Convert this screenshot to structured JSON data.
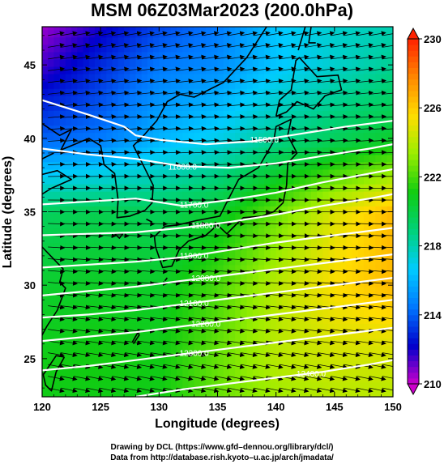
{
  "chart_data": {
    "type": "heatmap",
    "title": "MSM 06Z03Mar2023 (200.0hPa)",
    "xlabel": "Longitude (degrees)",
    "ylabel": "Latitude  (degrees)",
    "xlim": [
      120,
      150
    ],
    "ylim": [
      22.4,
      47.6
    ],
    "x_ticks": [
      120,
      125,
      130,
      135,
      140,
      145,
      150
    ],
    "y_ticks": [
      25,
      30,
      35,
      40,
      45
    ],
    "colorbar": {
      "min": 210,
      "max": 230,
      "ticks": [
        210,
        214,
        218,
        222,
        226,
        230
      ],
      "colors": [
        "#cc00cc",
        "#0000cc",
        "#0077ff",
        "#00ccff",
        "#00d27a",
        "#11cc11",
        "#99ee00",
        "#ffdd00",
        "#ff8800",
        "#ff2200"
      ]
    },
    "temperature_field": {
      "lon": [
        120,
        125,
        130,
        135,
        140,
        145,
        150
      ],
      "lat": [
        47.6,
        45,
        40,
        35,
        30,
        25,
        22.4
      ],
      "values": [
        [
          210.5,
          212.0,
          213.5,
          214.5,
          216.5,
          217.5,
          218.0
        ],
        [
          211.5,
          213.0,
          214.5,
          215.0,
          216.5,
          217.5,
          218.5
        ],
        [
          214.0,
          214.5,
          216.0,
          217.0,
          218.5,
          219.5,
          220.5
        ],
        [
          219.5,
          219.8,
          219.6,
          220.5,
          222.5,
          224.8,
          226.5
        ],
        [
          220.5,
          220.7,
          220.6,
          222.0,
          224.0,
          225.5,
          226.5
        ],
        [
          221.0,
          221.2,
          221.0,
          222.5,
          224.0,
          224.5,
          224.5
        ],
        [
          221.0,
          221.0,
          221.0,
          222.5,
          223.5,
          224.0,
          224.0
        ]
      ]
    },
    "geopotential_contours": [
      {
        "label": "11500.0",
        "label_lon": 139,
        "points": [
          [
            120,
            42.6
          ],
          [
            124,
            41.6
          ],
          [
            127,
            40.8
          ],
          [
            128,
            40.2
          ],
          [
            130,
            39.9
          ],
          [
            134,
            39.6
          ],
          [
            138,
            39.8
          ],
          [
            142,
            40.3
          ],
          [
            146,
            40.8
          ],
          [
            150,
            41.2
          ]
        ]
      },
      {
        "label": "11600.0",
        "label_lon": 132,
        "points": [
          [
            120,
            39.3
          ],
          [
            124,
            38.9
          ],
          [
            128,
            38.6
          ],
          [
            132,
            38.1
          ],
          [
            136,
            38.0
          ],
          [
            140,
            38.3
          ],
          [
            144,
            38.8
          ],
          [
            148,
            39.3
          ],
          [
            150,
            39.6
          ]
        ]
      },
      {
        "label": "11700.0",
        "label_lon": 133,
        "points": [
          [
            120,
            35.5
          ],
          [
            124,
            35.7
          ],
          [
            128,
            35.9
          ],
          [
            132,
            35.4
          ],
          [
            136,
            35.8
          ],
          [
            140,
            36.3
          ],
          [
            144,
            37.0
          ],
          [
            148,
            37.6
          ],
          [
            150,
            37.9
          ]
        ]
      },
      {
        "label": "11800.0",
        "label_lon": 134,
        "points": [
          [
            120,
            33.4
          ],
          [
            124,
            33.5
          ],
          [
            128,
            33.6
          ],
          [
            132,
            33.9
          ],
          [
            136,
            34.3
          ],
          [
            140,
            34.8
          ],
          [
            144,
            35.4
          ],
          [
            148,
            35.9
          ],
          [
            150,
            36.2
          ]
        ]
      },
      {
        "label": "11900.0",
        "label_lon": 133,
        "points": [
          [
            120,
            31.2
          ],
          [
            124,
            31.4
          ],
          [
            128,
            31.6
          ],
          [
            132,
            31.9
          ],
          [
            136,
            32.4
          ],
          [
            140,
            32.9
          ],
          [
            144,
            33.3
          ],
          [
            148,
            33.7
          ],
          [
            150,
            33.9
          ]
        ]
      },
      {
        "label": "12000.0",
        "label_lon": 134,
        "points": [
          [
            120,
            29.3
          ],
          [
            124,
            29.6
          ],
          [
            128,
            29.9
          ],
          [
            132,
            30.3
          ],
          [
            136,
            30.7
          ],
          [
            140,
            31.1
          ],
          [
            144,
            31.5
          ],
          [
            148,
            31.9
          ],
          [
            150,
            32.1
          ]
        ]
      },
      {
        "label": "12100.0",
        "label_lon": 133,
        "points": [
          [
            120,
            27.8
          ],
          [
            124,
            28.0
          ],
          [
            128,
            28.3
          ],
          [
            132,
            28.7
          ],
          [
            136,
            29.1
          ],
          [
            140,
            29.5
          ],
          [
            144,
            29.9
          ],
          [
            148,
            30.3
          ],
          [
            150,
            30.5
          ]
        ]
      },
      {
        "label": "12200.0",
        "label_lon": 134,
        "points": [
          [
            120,
            26.2
          ],
          [
            124,
            26.5
          ],
          [
            128,
            26.8
          ],
          [
            132,
            27.2
          ],
          [
            136,
            27.6
          ],
          [
            140,
            28.0
          ],
          [
            144,
            28.4
          ],
          [
            148,
            28.8
          ],
          [
            150,
            29.0
          ]
        ]
      },
      {
        "label": "12300.0",
        "label_lon": 133,
        "points": [
          [
            120,
            24.2
          ],
          [
            124,
            24.5
          ],
          [
            128,
            24.9
          ],
          [
            132,
            25.3
          ],
          [
            136,
            25.7
          ],
          [
            140,
            26.1
          ],
          [
            144,
            26.5
          ],
          [
            148,
            26.9
          ],
          [
            150,
            27.1
          ]
        ]
      },
      {
        "label": "12400.0",
        "label_lon": 143,
        "points": [
          [
            128,
            22.4
          ],
          [
            132,
            22.9
          ],
          [
            136,
            23.3
          ],
          [
            140,
            23.7
          ],
          [
            144,
            24.1
          ],
          [
            148,
            24.6
          ],
          [
            150,
            24.9
          ]
        ]
      }
    ],
    "grid": false,
    "legend": "right"
  },
  "credits": {
    "line1": "Drawing by DCL (https://www.gfd–dennou.org/library/dcl/)",
    "line2": "Data from http://database.rish.kyoto–u.ac.jp/arch/jmadata/"
  }
}
